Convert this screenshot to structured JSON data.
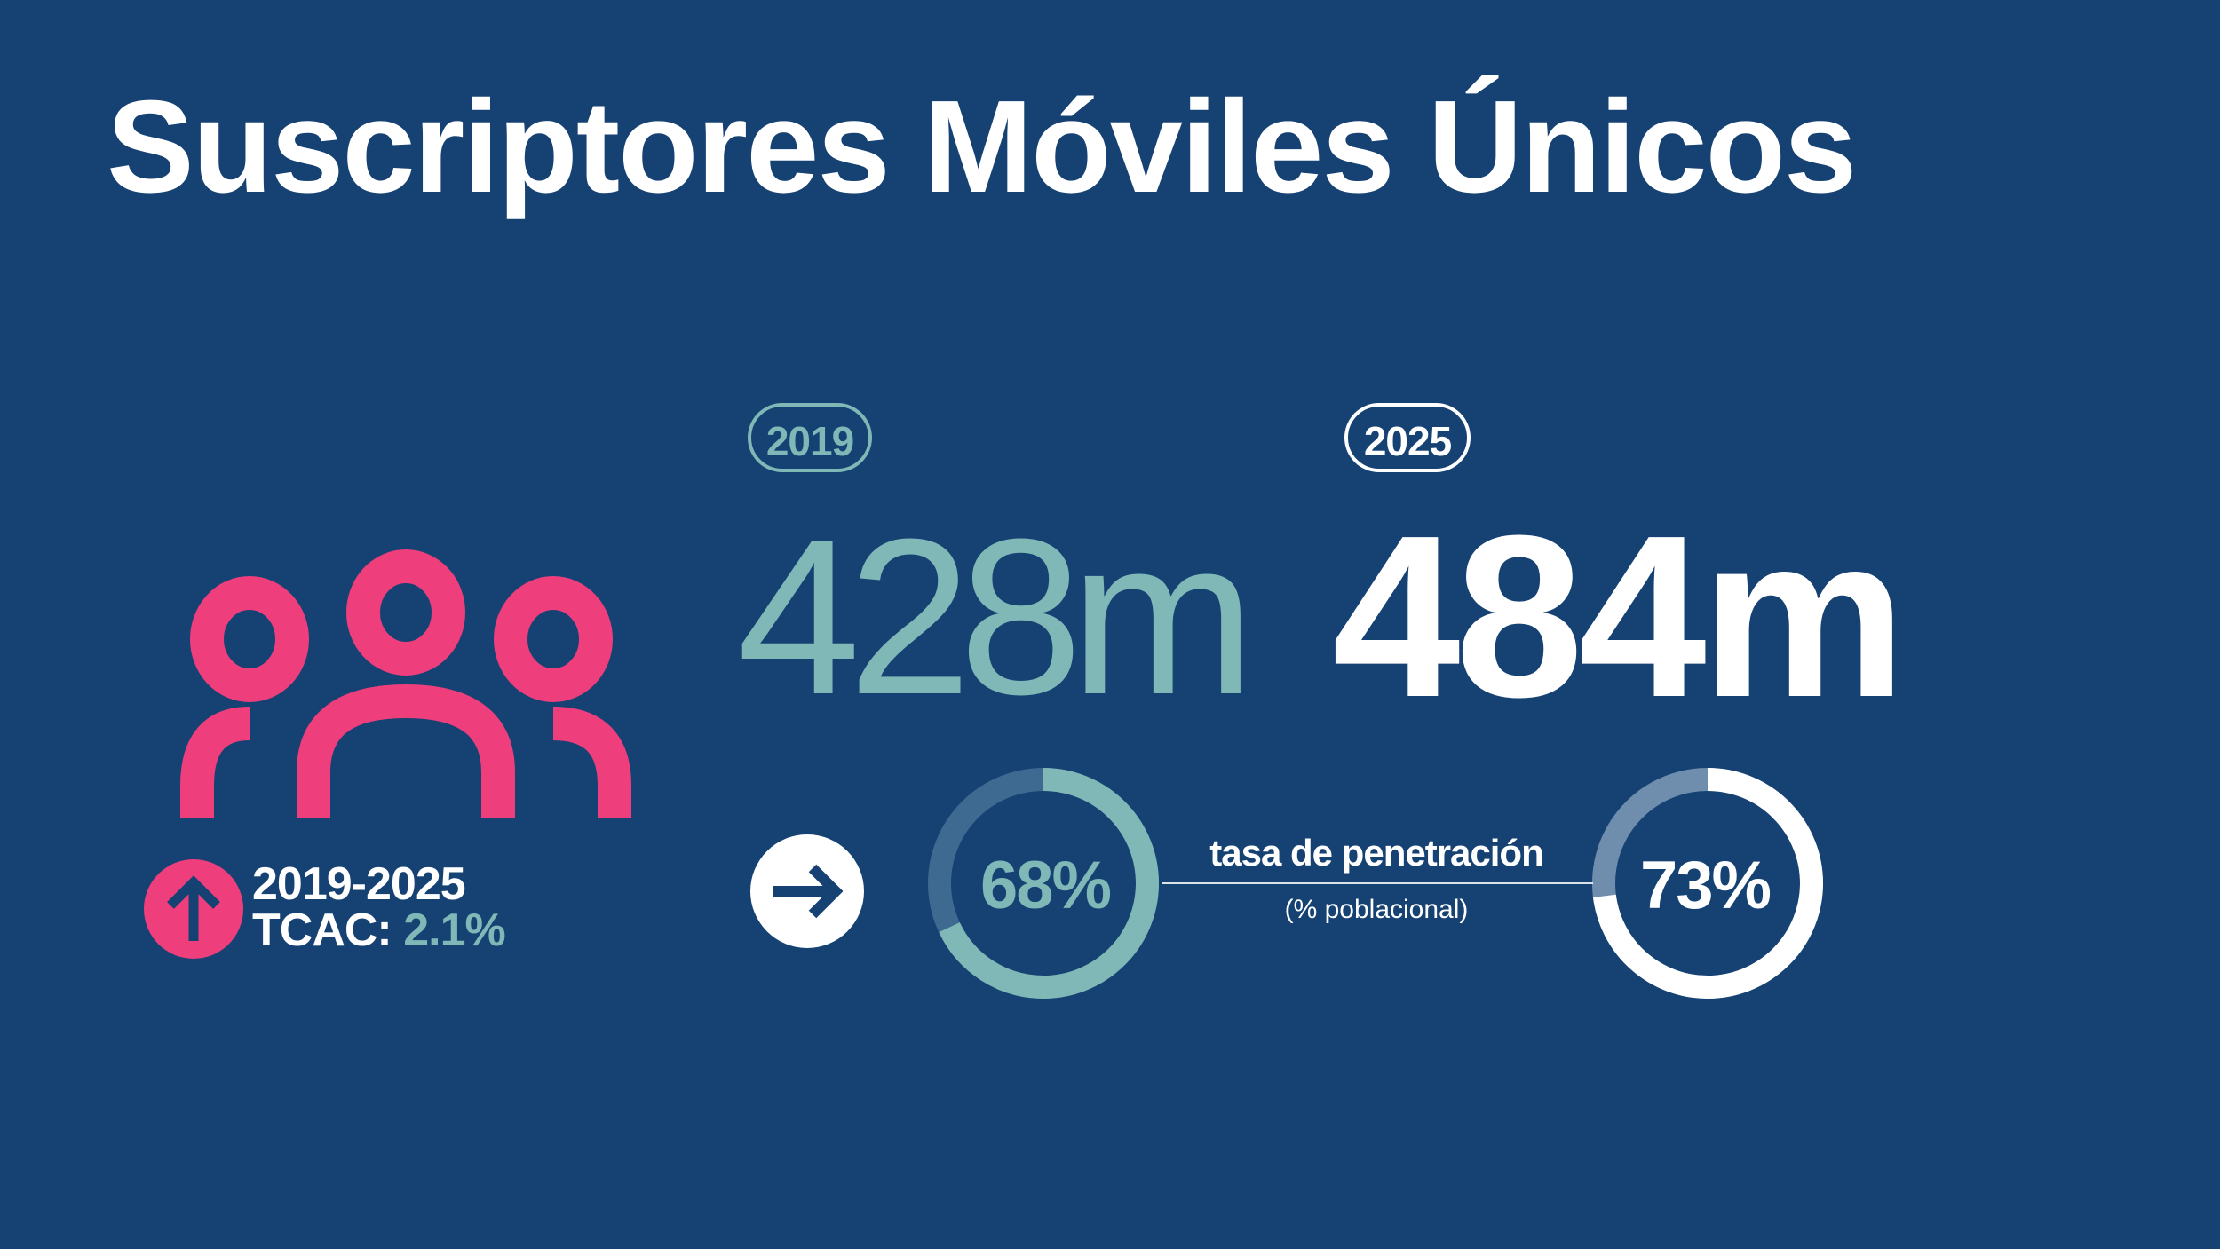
{
  "title": "Suscriptores Móviles Únicos",
  "colors": {
    "background": "#164273",
    "accent_pink": "#ee3e7c",
    "teal": "#7fb8b6",
    "white": "#ffffff",
    "muted_blue": "#3e6991",
    "slate": "#6f8ead"
  },
  "icons": {
    "people": "people-group-icon",
    "growth": "arrow-up-icon",
    "transition": "arrow-right-icon"
  },
  "years": {
    "start_label": "2019",
    "end_label": "2025"
  },
  "subscribers": {
    "start_value": "428m",
    "end_value": "484m"
  },
  "cagr": {
    "period": "2019-2025",
    "label": "TCAC:",
    "value": "2.1%"
  },
  "penetration": {
    "label": "tasa de penetración",
    "sublabel": "(% poblacional)",
    "start_text": "68%",
    "end_text": "73%",
    "start_fraction": 0.68,
    "end_fraction": 0.73
  }
}
